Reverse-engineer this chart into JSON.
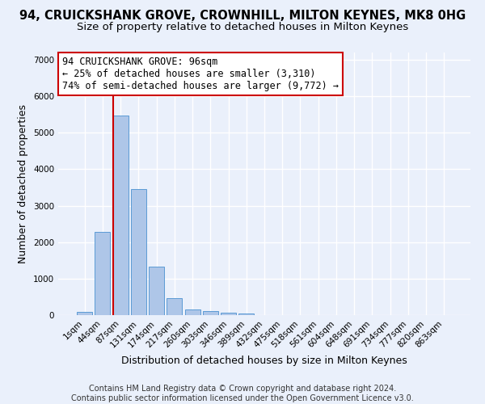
{
  "title": "94, CRUICKSHANK GROVE, CROWNHILL, MILTON KEYNES, MK8 0HG",
  "subtitle": "Size of property relative to detached houses in Milton Keynes",
  "xlabel": "Distribution of detached houses by size in Milton Keynes",
  "ylabel": "Number of detached properties",
  "footer_line1": "Contains HM Land Registry data © Crown copyright and database right 2024.",
  "footer_line2": "Contains public sector information licensed under the Open Government Licence v3.0.",
  "bar_labels": [
    "1sqm",
    "44sqm",
    "87sqm",
    "131sqm",
    "174sqm",
    "217sqm",
    "260sqm",
    "303sqm",
    "346sqm",
    "389sqm",
    "432sqm",
    "475sqm",
    "518sqm",
    "561sqm",
    "604sqm",
    "648sqm",
    "691sqm",
    "734sqm",
    "777sqm",
    "820sqm",
    "863sqm"
  ],
  "bar_values": [
    80,
    2280,
    5480,
    3450,
    1320,
    470,
    160,
    110,
    70,
    40,
    10,
    5,
    3,
    2,
    1,
    1,
    0,
    0,
    0,
    0,
    0
  ],
  "bar_color": "#aec6e8",
  "bar_edge_color": "#5b9bd5",
  "background_color": "#eaf0fb",
  "grid_color": "#ffffff",
  "annotation_text": "94 CRUICKSHANK GROVE: 96sqm\n← 25% of detached houses are smaller (3,310)\n74% of semi-detached houses are larger (9,772) →",
  "vline_color": "#cc0000",
  "annotation_box_color": "#ffffff",
  "annotation_box_edge": "#cc0000",
  "ylim": [
    0,
    7200
  ],
  "yticks": [
    0,
    1000,
    2000,
    3000,
    4000,
    5000,
    6000,
    7000
  ],
  "title_fontsize": 10.5,
  "subtitle_fontsize": 9.5,
  "axis_label_fontsize": 9,
  "tick_fontsize": 7.5,
  "footer_fontsize": 7
}
